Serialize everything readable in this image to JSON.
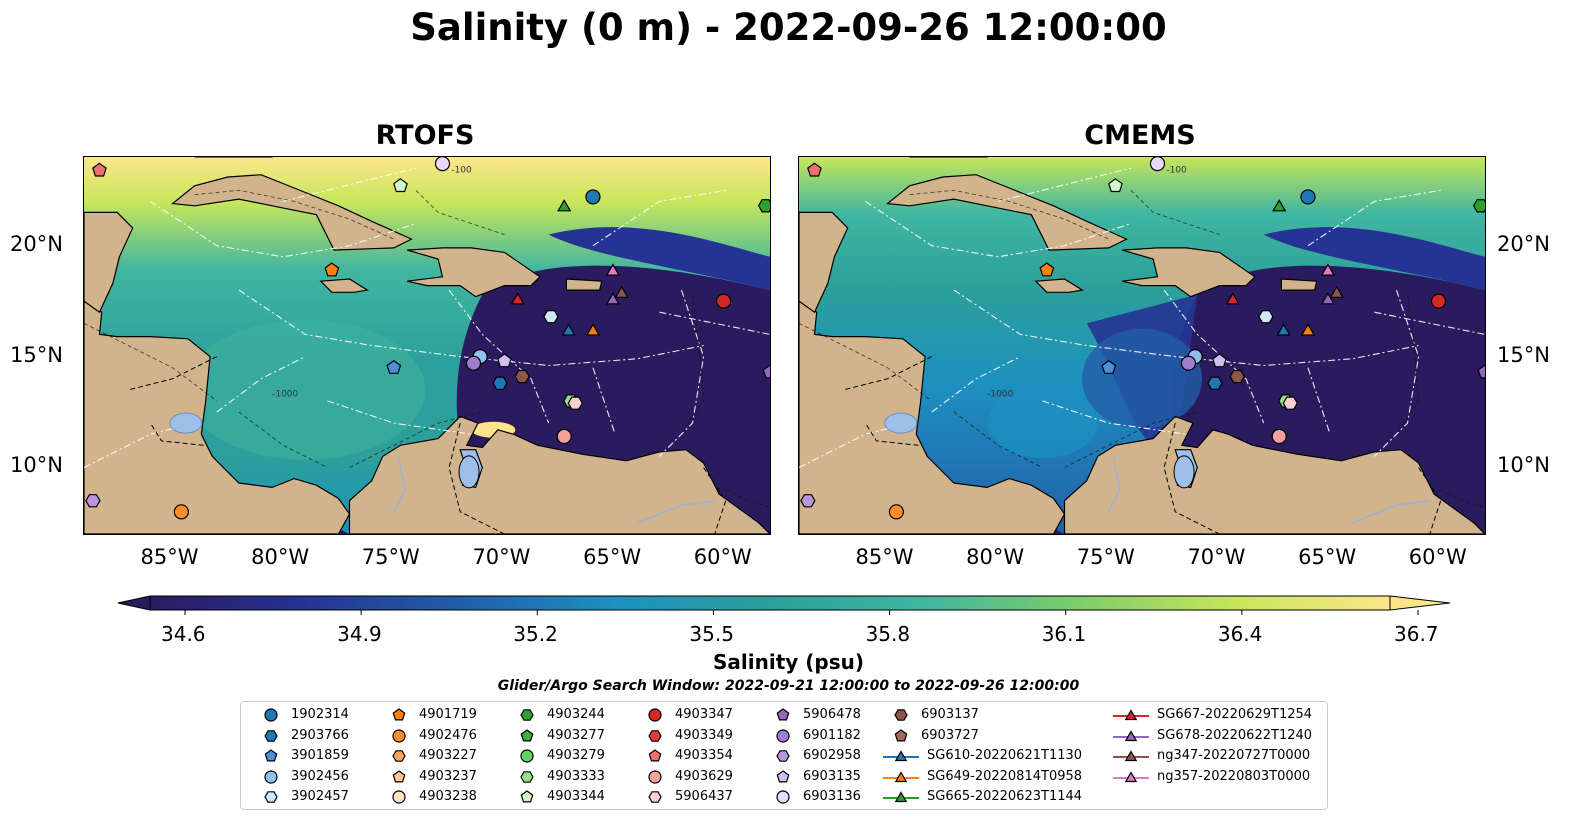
{
  "title": "Salinity (0 m) - 2022-09-26 12:00:00",
  "panels": [
    {
      "title": "RTOFS",
      "model": "rtofs"
    },
    {
      "title": "CMEMS",
      "model": "cmems"
    }
  ],
  "axes": {
    "lon_ticks": [
      "85°W",
      "80°W",
      "75°W",
      "70°W",
      "65°W",
      "60°W"
    ],
    "lat_ticks": [
      "20°N",
      "15°N",
      "10°N"
    ],
    "lon_range": [
      -89,
      -58
    ],
    "lat_range": [
      7,
      24
    ]
  },
  "bathymetry_labels": [
    "-100",
    "-1000"
  ],
  "colorbar": {
    "label": "Salinity (psu)",
    "ticks": [
      "34.6",
      "34.9",
      "35.2",
      "35.5",
      "35.8",
      "36.1",
      "36.4",
      "36.7"
    ],
    "range": [
      34.6,
      36.7
    ],
    "colormap": [
      "#2a1b5e",
      "#253494",
      "#225ea8",
      "#1d91c0",
      "#2c9f9a",
      "#41b6a0",
      "#7fcd6a",
      "#c7e65b",
      "#fde68a"
    ],
    "extend": "both"
  },
  "search_window": "Glider/Argo Search Window: 2022-09-21 12:00:00 to 2022-09-26 12:00:00",
  "land_color": "#d2b48c",
  "legend": {
    "columns": [
      [
        {
          "label": "1902314",
          "marker": "circle",
          "color": "#1f77b4"
        },
        {
          "label": "2903766",
          "marker": "hexagon",
          "color": "#1f77b4"
        },
        {
          "label": "3901859",
          "marker": "pentagon",
          "color": "#4a90d9"
        },
        {
          "label": "3902456",
          "marker": "circle",
          "color": "#8ec1ef"
        },
        {
          "label": "3902457",
          "marker": "hexagon",
          "color": "#cfe8fb"
        }
      ],
      [
        {
          "label": "4901719",
          "marker": "pentagon",
          "color": "#ff7f0e"
        },
        {
          "label": "4902476",
          "marker": "circle",
          "color": "#ff8c2a"
        },
        {
          "label": "4903227",
          "marker": "hexagon",
          "color": "#ffa65c"
        },
        {
          "label": "4903237",
          "marker": "pentagon",
          "color": "#ffc48f"
        },
        {
          "label": "4903238",
          "marker": "circle",
          "color": "#ffe2c2"
        }
      ],
      [
        {
          "label": "4903244",
          "marker": "hexagon",
          "color": "#2ca02c"
        },
        {
          "label": "4903277",
          "marker": "pentagon",
          "color": "#3cb043"
        },
        {
          "label": "4903279",
          "marker": "circle",
          "color": "#5fd45f"
        },
        {
          "label": "4903333",
          "marker": "hexagon",
          "color": "#98df8a"
        },
        {
          "label": "4903344",
          "marker": "pentagon",
          "color": "#d4f5cc"
        }
      ],
      [
        {
          "label": "4903347",
          "marker": "circle",
          "color": "#d62728"
        },
        {
          "label": "4903349",
          "marker": "hexagon",
          "color": "#e03a3a"
        },
        {
          "label": "4903354",
          "marker": "pentagon",
          "color": "#f0706e"
        },
        {
          "label": "4903629",
          "marker": "circle",
          "color": "#f5a09e"
        },
        {
          "label": "5906437",
          "marker": "hexagon",
          "color": "#fcd0cf"
        }
      ],
      [
        {
          "label": "5906478",
          "marker": "pentagon",
          "color": "#9467bd"
        },
        {
          "label": "6901182",
          "marker": "circle",
          "color": "#a27dcf"
        },
        {
          "label": "6902958",
          "marker": "hexagon",
          "color": "#b798e0"
        },
        {
          "label": "6903135",
          "marker": "pentagon",
          "color": "#d3bdf0"
        },
        {
          "label": "6903136",
          "marker": "circle",
          "color": "#ead9fb"
        }
      ],
      [
        {
          "label": "6903137",
          "marker": "hexagon",
          "color": "#8c564b"
        },
        {
          "label": "6903727",
          "marker": "pentagon",
          "color": "#a66a5c"
        },
        {
          "label": "SG610-20220621T1130",
          "marker": "triangle-line",
          "color": "#1f77b4"
        },
        {
          "label": "SG649-20220814T0958",
          "marker": "triangle-line",
          "color": "#ff7f0e"
        },
        {
          "label": "SG665-20220623T1144",
          "marker": "triangle-line",
          "color": "#2ca02c"
        }
      ],
      [
        {
          "label": "SG667-20220629T1254",
          "marker": "triangle-line",
          "color": "#d62728"
        },
        {
          "label": "SG678-20220622T1240",
          "marker": "triangle-line",
          "color": "#9467bd"
        },
        {
          "label": "ng347-20220727T0000",
          "marker": "triangle-line",
          "color": "#8c564b"
        },
        {
          "label": "ng357-20220803T0000",
          "marker": "triangle-line",
          "color": "#e377c2"
        }
      ]
    ]
  },
  "stations": [
    {
      "id": "4903354",
      "lon": -88.3,
      "lat": 23.4
    },
    {
      "id": "6903136",
      "lon": -72.8,
      "lat": 23.7
    },
    {
      "id": "4903344",
      "lon": -74.7,
      "lat": 22.7
    },
    {
      "id": "1902314",
      "lon": -66.0,
      "lat": 22.2
    },
    {
      "id": "SG665-20220623T1144",
      "lon": -67.3,
      "lat": 21.8
    },
    {
      "id": "4903244",
      "lon": -58.2,
      "lat": 21.8
    },
    {
      "id": "4901719",
      "lon": -77.8,
      "lat": 18.9
    },
    {
      "id": "ng357-20220803T0000",
      "lon": -65.1,
      "lat": 18.9
    },
    {
      "id": "ng347-20220727T0000",
      "lon": -64.7,
      "lat": 17.9
    },
    {
      "id": "SG678-20220622T1240",
      "lon": -65.1,
      "lat": 17.6
    },
    {
      "id": "SG667-20220629T1254",
      "lon": -69.4,
      "lat": 17.6
    },
    {
      "id": "4903347",
      "lon": -60.1,
      "lat": 17.5
    },
    {
      "id": "3902457",
      "lon": -67.9,
      "lat": 16.8
    },
    {
      "id": "SG610-20220621T1130",
      "lon": -67.1,
      "lat": 16.2
    },
    {
      "id": "SG649-20220814T0958",
      "lon": -66.0,
      "lat": 16.2
    },
    {
      "id": "3902456",
      "lon": -71.1,
      "lat": 15.0
    },
    {
      "id": "6903135",
      "lon": -70.0,
      "lat": 14.8
    },
    {
      "id": "6901182",
      "lon": -71.4,
      "lat": 14.7
    },
    {
      "id": "3901859",
      "lon": -75.0,
      "lat": 14.5
    },
    {
      "id": "6903137",
      "lon": -69.2,
      "lat": 14.1
    },
    {
      "id": "2903766",
      "lon": -70.2,
      "lat": 13.8
    },
    {
      "id": "5906478",
      "lon": -58.0,
      "lat": 14.3
    },
    {
      "id": "4903333",
      "lon": -67.0,
      "lat": 13.0
    },
    {
      "id": "5906437",
      "lon": -66.8,
      "lat": 12.9
    },
    {
      "id": "4903629",
      "lon": -67.3,
      "lat": 11.4
    },
    {
      "id": "6902958",
      "lon": -88.6,
      "lat": 8.5
    },
    {
      "id": "4902476",
      "lon": -84.6,
      "lat": 8.0
    }
  ]
}
